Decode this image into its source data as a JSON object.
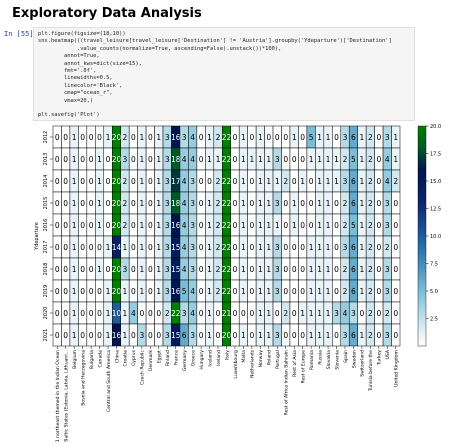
{
  "header": {
    "title": "Exploratory Data Analysis"
  },
  "cell": {
    "prompt": "In [55]:",
    "code_lines": [
      "plt.figure(figsize=(18,10))",
      "sns.heatmap(((travel_leisure[travel_leisure['Destination'] != 'Austria'].groupby('Ydeparture')['Destination']",
      "            .value_counts(normalize=True, ascending=False).unstack())*100),",
      "        annot=True,",
      "        annot_kws=dict(size=15),",
      "        fmt='.0f',",
      "        linewidths=0.5,",
      "        linecolor='Black',",
      "        cmap=\"ocean_r\",",
      "        vmax=20,)",
      "",
      "plt.savefig('Plot')"
    ]
  },
  "chart_data": {
    "type": "heatmap",
    "ylabel": "Ydeparture",
    "xlabel": "",
    "colormap": "ocean_r",
    "vmin": 0,
    "vmax": 20,
    "colorbar_ticks": [
      2.5,
      5.0,
      7.5,
      10.0,
      12.5,
      15.0,
      17.5,
      20.0
    ],
    "colorbar_tick_labels": [
      "2.5",
      "5.0",
      "7.5",
      "10.0",
      "12.5",
      "15.0",
      "17.5",
      "20.0"
    ],
    "rows": [
      "2012",
      "2013",
      "2014",
      "2015",
      "2016",
      "2017",
      "2018",
      "2019",
      "2020",
      "2021"
    ],
    "columns": [
      "British Indian Ocean Territory",
      "Baltic States (Estonia, Latvia, Lithuania)",
      "Belgium",
      "Bosnia and Herzegovina",
      "Bulgaria",
      "Canada",
      "Central and South America",
      "China",
      "Croatia",
      "Cyprus",
      "Czech Republic",
      "Denmark",
      "Egypt",
      "Finland",
      "France",
      "Germany",
      "Greece",
      "Hungary",
      "Iceland",
      "Ireland",
      "Italy",
      "Luxembourg",
      "Malta",
      "Netherlands",
      "Norway",
      "Poland",
      "Portugal",
      "Rest of Africa",
      "Rest of Asia",
      "Rest of Europe",
      "Romania",
      "Russia",
      "Slovakia",
      "Slovenia",
      "Spain",
      "Sweden",
      "Switzerland",
      "Tunisia",
      "Turkey",
      "USA",
      "United Kingdom"
    ],
    "column_labels": [
      "1 northeast themed in the Indian Ocean",
      "Baltic States (Estonia, Latvia, Lithuani...",
      "Belgium",
      "Bosnia and Herzegovina",
      "Bulgaria",
      "Canada",
      "Central and South America",
      "China",
      "Croatia",
      "Cyprus",
      "Czech Republic",
      "Denmark",
      "Egypt",
      "Finland",
      "France",
      "Germany",
      "Greece",
      "Hungary",
      "Iceland",
      "Ireland",
      "Italy",
      "Luxembourg",
      "Malta",
      "Netherlands",
      "Norway",
      "Poland",
      "Portugal",
      "Rest of Africa Indian Bahrain",
      "Rest of Asia",
      "Rest of Europe",
      "Romania",
      "Russia",
      "Slovakia",
      "Slovenia",
      "Spain",
      "Sweden",
      "Switzerland",
      "Tunisia before the",
      "Turkey",
      "USA",
      "United Kingdom"
    ],
    "values": [
      [
        0,
        0,
        1,
        0,
        0,
        0,
        1,
        20,
        2,
        0,
        1,
        0,
        1,
        3,
        16,
        3,
        4,
        0,
        1,
        2,
        22,
        0,
        1,
        0,
        1,
        0,
        0,
        0,
        1,
        0,
        5,
        1,
        1,
        0,
        3,
        6,
        1,
        2,
        0,
        3,
        1
      ],
      [
        0,
        0,
        1,
        0,
        0,
        1,
        0,
        20,
        3,
        0,
        1,
        0,
        1,
        3,
        18,
        4,
        4,
        0,
        1,
        1,
        22,
        0,
        1,
        1,
        1,
        1,
        3,
        0,
        0,
        0,
        1,
        1,
        1,
        1,
        2,
        5,
        1,
        2,
        0,
        4,
        1
      ],
      [
        0,
        0,
        1,
        0,
        0,
        1,
        0,
        20,
        2,
        0,
        1,
        0,
        1,
        3,
        17,
        4,
        3,
        0,
        0,
        2,
        22,
        0,
        1,
        0,
        1,
        1,
        1,
        2,
        0,
        1,
        0,
        1,
        1,
        1,
        3,
        6,
        1,
        2,
        0,
        4,
        2
      ],
      [
        0,
        0,
        1,
        0,
        0,
        1,
        0,
        20,
        2,
        0,
        1,
        0,
        1,
        3,
        18,
        4,
        3,
        0,
        1,
        2,
        22,
        0,
        1,
        0,
        1,
        1,
        3,
        0,
        1,
        0,
        0,
        1,
        1,
        0,
        2,
        6,
        1,
        2,
        0,
        3,
        0
      ],
      [
        0,
        0,
        1,
        0,
        0,
        1,
        0,
        20,
        2,
        0,
        1,
        0,
        1,
        3,
        16,
        4,
        3,
        0,
        1,
        2,
        22,
        0,
        1,
        0,
        1,
        1,
        1,
        0,
        1,
        0,
        0,
        1,
        1,
        0,
        2,
        5,
        1,
        2,
        0,
        3,
        0
      ],
      [
        0,
        0,
        1,
        0,
        0,
        0,
        1,
        14,
        1,
        0,
        1,
        0,
        1,
        3,
        15,
        4,
        3,
        0,
        1,
        2,
        22,
        0,
        1,
        0,
        1,
        1,
        3,
        0,
        0,
        0,
        1,
        1,
        1,
        0,
        3,
        6,
        1,
        2,
        0,
        2,
        0
      ],
      [
        0,
        0,
        1,
        0,
        0,
        1,
        0,
        20,
        3,
        0,
        1,
        0,
        1,
        3,
        15,
        4,
        3,
        0,
        1,
        2,
        22,
        0,
        1,
        0,
        1,
        1,
        3,
        0,
        0,
        0,
        1,
        1,
        1,
        0,
        2,
        6,
        1,
        2,
        0,
        3,
        0
      ],
      [
        0,
        0,
        1,
        0,
        0,
        0,
        1,
        20,
        1,
        0,
        1,
        0,
        1,
        3,
        16,
        5,
        4,
        0,
        1,
        2,
        22,
        0,
        1,
        0,
        1,
        1,
        3,
        0,
        0,
        0,
        1,
        1,
        1,
        0,
        2,
        6,
        1,
        2,
        0,
        3,
        0
      ],
      [
        0,
        0,
        1,
        0,
        0,
        0,
        1,
        10,
        1,
        4,
        0,
        0,
        0,
        2,
        22,
        3,
        4,
        0,
        1,
        0,
        21,
        0,
        0,
        0,
        1,
        1,
        0,
        2,
        0,
        1,
        1,
        1,
        1,
        3,
        4,
        3,
        0,
        2,
        0,
        2,
        0
      ],
      [
        0,
        0,
        1,
        0,
        0,
        0,
        1,
        16,
        1,
        0,
        3,
        0,
        0,
        3,
        15,
        6,
        3,
        0,
        1,
        0,
        20,
        0,
        1,
        0,
        1,
        1,
        3,
        0,
        0,
        0,
        1,
        1,
        1,
        0,
        3,
        6,
        1,
        2,
        0,
        3,
        0
      ]
    ]
  }
}
